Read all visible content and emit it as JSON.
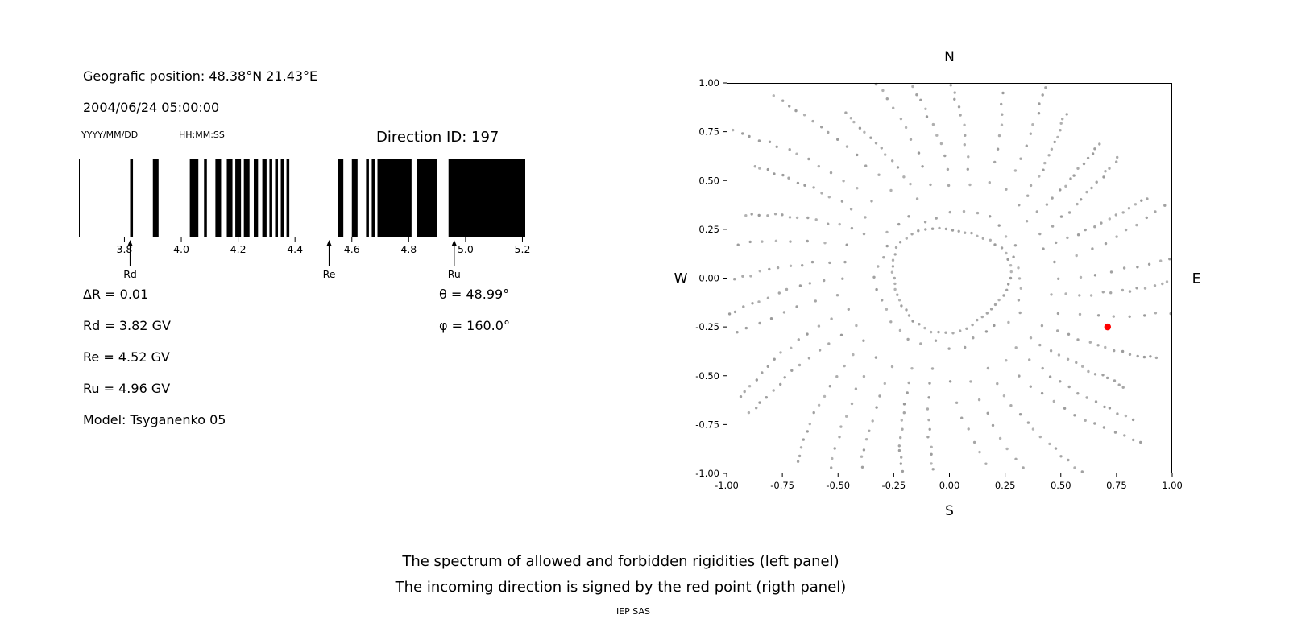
{
  "header": {
    "position": "Geografic position: 48.38°N 21.43°E",
    "datetime": "2004/06/24 05:00:00",
    "date_format": "YYYY/MM/DD",
    "time_format": "HH:MM:SS",
    "direction_id": "Direction ID: 197"
  },
  "params": {
    "delta_r": "ΔR = 0.01",
    "rd": "Rd = 3.82 GV",
    "re": "Re = 4.52 GV",
    "ru": "Ru = 4.96 GV",
    "model": "Model: Tsyganenko 05",
    "theta": "θ = 48.99°",
    "phi": "φ = 160.0°"
  },
  "captions": {
    "line1": "The spectrum of allowed and forbidden rigidities (left panel)",
    "line2": "The incoming direction is signed by the red point (rigth panel)",
    "credit": "IEP SAS"
  },
  "chart_data": [
    {
      "type": "bar",
      "title": "Spectrum of allowed (black) and forbidden (white) rigidities",
      "unit": "GV",
      "xlim": [
        3.64,
        5.21
      ],
      "ticks": [
        3.8,
        4.0,
        4.2,
        4.4,
        4.6,
        4.8,
        5.0,
        5.2
      ],
      "tick_labels": [
        "3.8",
        "4.0",
        "4.2",
        "4.4",
        "4.6",
        "4.8",
        "5.0",
        "5.2"
      ],
      "delta_r": 0.01,
      "allowed_bands": [
        [
          3.82,
          3.83
        ],
        [
          3.9,
          3.92
        ],
        [
          4.03,
          4.06
        ],
        [
          4.08,
          4.09
        ],
        [
          4.12,
          4.14
        ],
        [
          4.16,
          4.18
        ],
        [
          4.19,
          4.21
        ],
        [
          4.22,
          4.24
        ],
        [
          4.255,
          4.27
        ],
        [
          4.285,
          4.3
        ],
        [
          4.31,
          4.32
        ],
        [
          4.33,
          4.34
        ],
        [
          4.35,
          4.36
        ],
        [
          4.37,
          4.38
        ],
        [
          4.55,
          4.57
        ],
        [
          4.6,
          4.62
        ],
        [
          4.65,
          4.66
        ],
        [
          4.67,
          4.68
        ],
        [
          4.69,
          4.81
        ],
        [
          4.83,
          4.9
        ],
        [
          4.94,
          5.21
        ]
      ],
      "markers": [
        {
          "label": "Rd",
          "x": 3.82
        },
        {
          "label": "Re",
          "x": 4.52
        },
        {
          "label": "Ru",
          "x": 4.96
        }
      ]
    },
    {
      "type": "scatter",
      "title": "Incoming / asymptotic direction map",
      "xlim": [
        -1,
        1
      ],
      "ylim": [
        -1,
        1
      ],
      "tick_values": [
        -1,
        -0.75,
        -0.5,
        -0.25,
        0,
        0.25,
        0.5,
        0.75,
        1
      ],
      "tick_labels": [
        "-1.00",
        "-0.75",
        "-0.50",
        "-0.25",
        "0.00",
        "0.25",
        "0.50",
        "0.75",
        "1.00"
      ],
      "compass": {
        "top": "N",
        "bottom": "S",
        "left": "W",
        "right": "E"
      },
      "red_point": {
        "x": 0.71,
        "y": -0.25,
        "color": "#ff0000"
      },
      "dot_color": "#999999",
      "ring": {
        "count": 54,
        "radius": 0.265
      },
      "spokes": {
        "count": 36,
        "r_inner": 0.31,
        "r_outer_min": 0.95,
        "r_outer_max": 1.3,
        "dots_per_spoke": 15
      },
      "seed": 11
    }
  ]
}
